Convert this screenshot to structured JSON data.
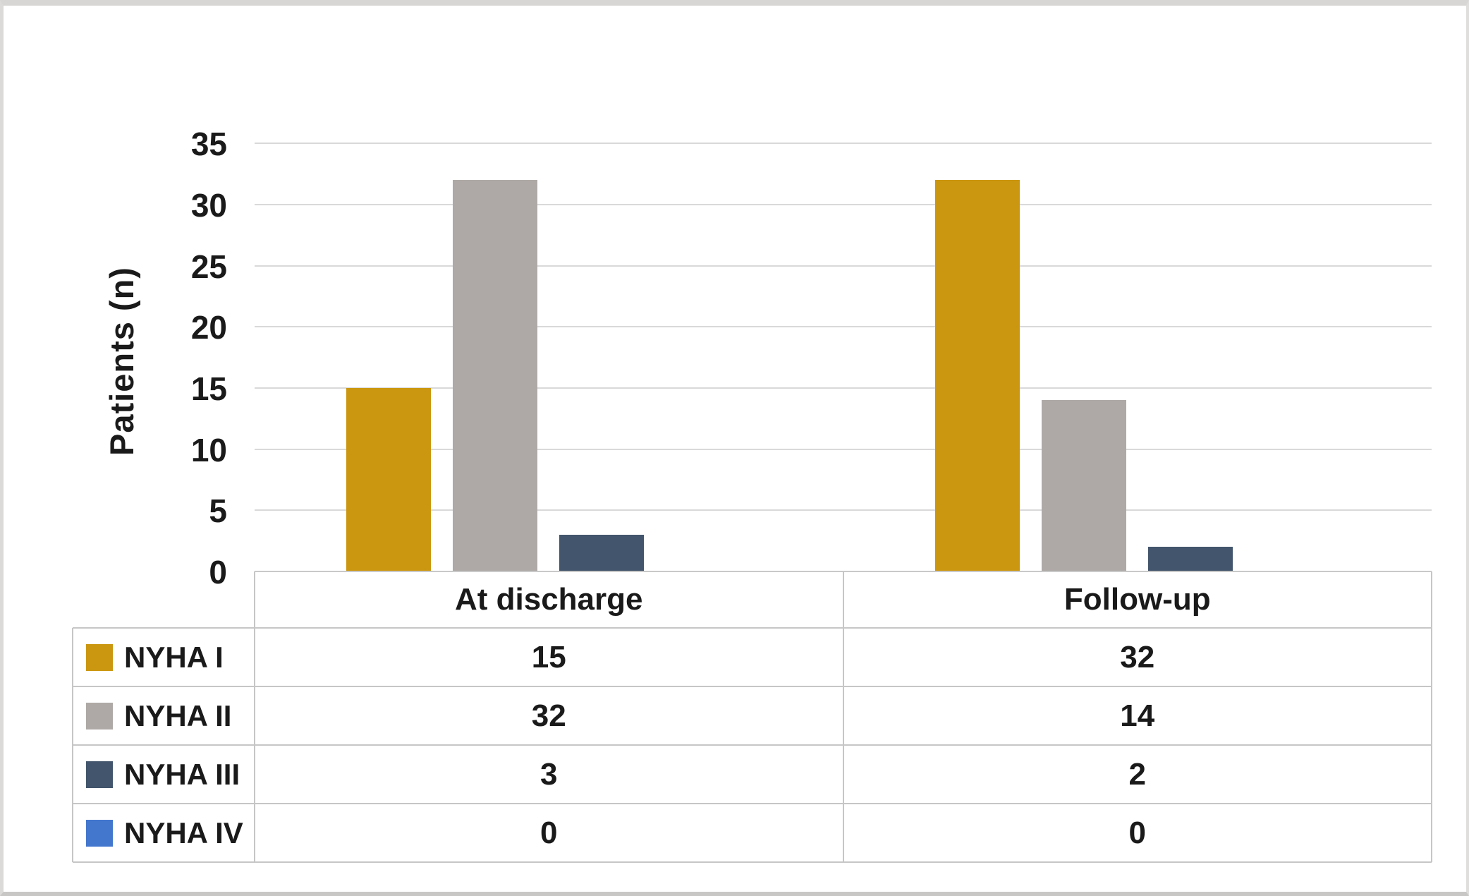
{
  "chart_data": {
    "type": "bar",
    "title": "",
    "ylabel": "Patients (n)",
    "categories": [
      "At discharge",
      "Follow-up"
    ],
    "series": [
      {
        "name": "NYHA I",
        "color": "#CB9710",
        "values": [
          15,
          32
        ]
      },
      {
        "name": "NYHA II",
        "color": "#AEA9A6",
        "values": [
          32,
          14
        ]
      },
      {
        "name": "NYHA III",
        "color": "#42556C",
        "values": [
          3,
          2
        ]
      },
      {
        "name": "NYHA IV",
        "color": "#4377CE",
        "values": [
          0,
          0
        ]
      }
    ],
    "ylim": [
      0,
      35
    ],
    "ytick_step": 5,
    "yticks": [
      0,
      5,
      10,
      15,
      20,
      25,
      30,
      35
    ],
    "grid": true,
    "legend_position": "data-table-left-column"
  }
}
